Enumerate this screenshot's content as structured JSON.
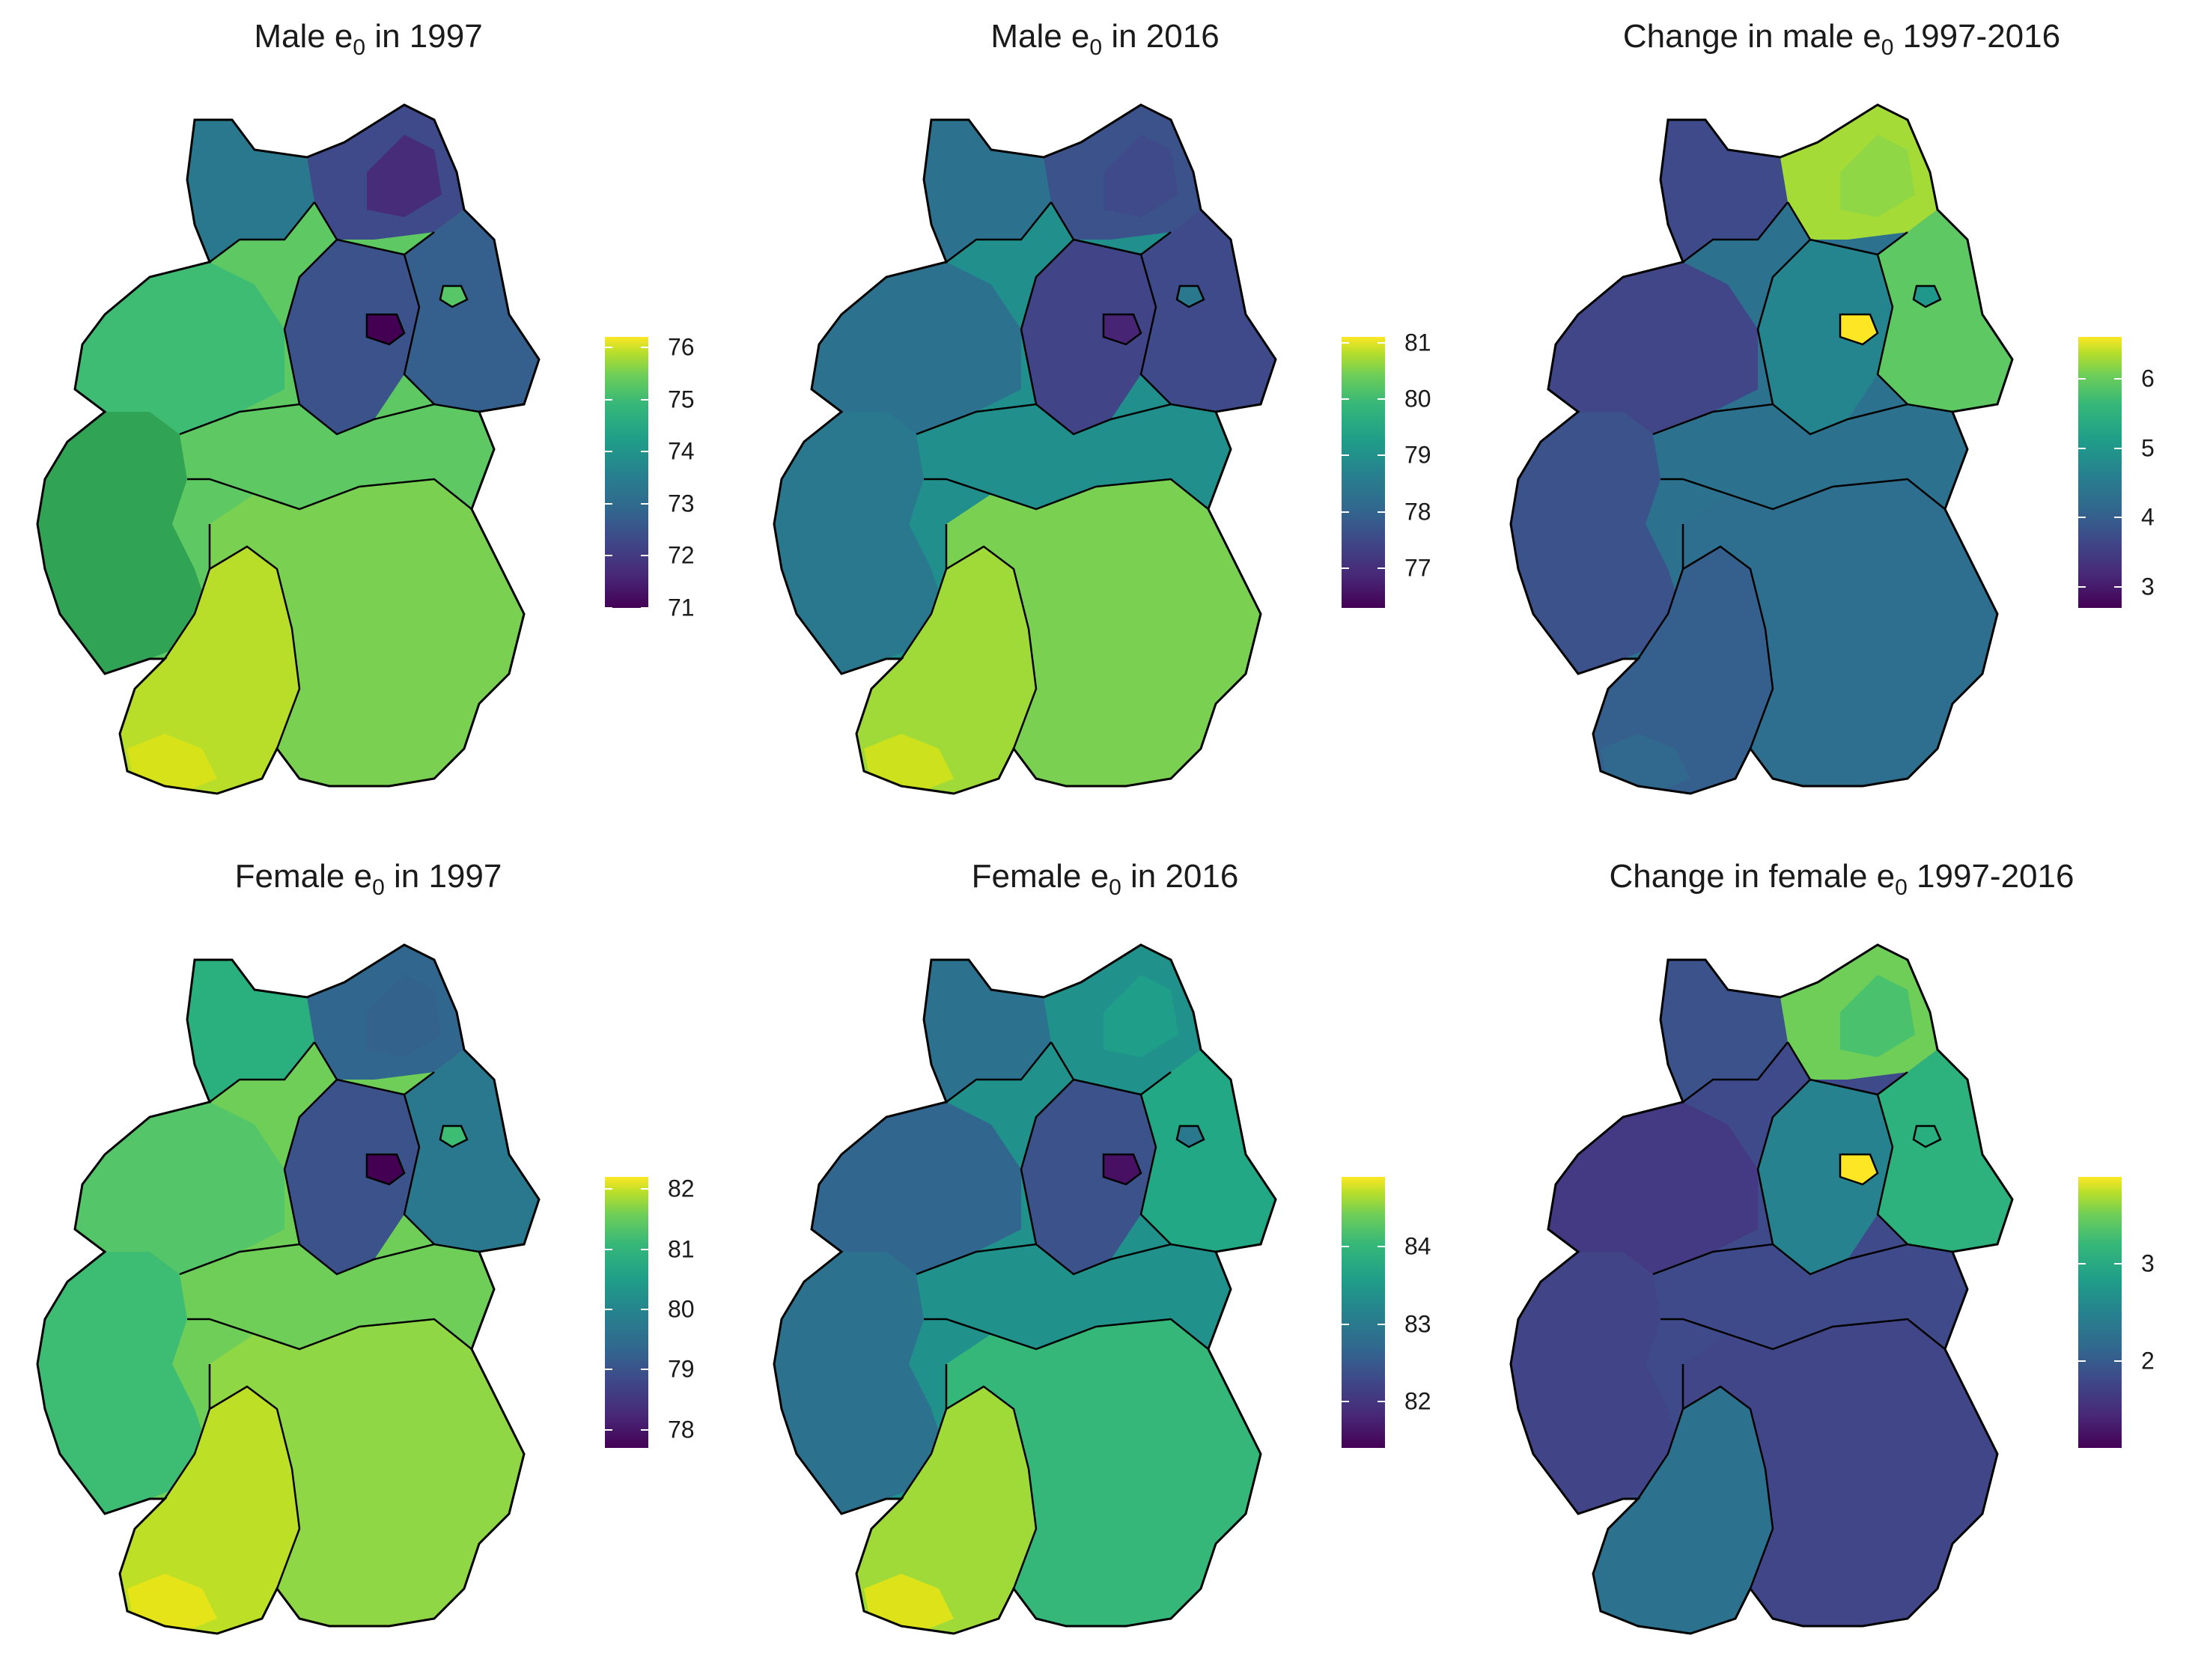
{
  "panels": [
    {
      "id": "male-1997",
      "title_pre": "Male e",
      "title_sub": "0",
      "title_post": " in 1997",
      "palette": {
        "north": "#2a788e",
        "ne_coast": "#3e4a89",
        "ne_dark": "#472c7a",
        "east": "#35608d",
        "center_east": "#3b528b",
        "west": "#31a354",
        "nw": "#3fbc73",
        "center": "#5ec962",
        "south_west": "#b8de29",
        "south_east": "#7ad151",
        "sw_bright": "#d8e219",
        "berlin": "#56c667",
        "hotspot": "#440154"
      },
      "legend": {
        "min": 71,
        "max": 76.2,
        "ticks": [
          "71",
          "72",
          "73",
          "74",
          "75",
          "76"
        ],
        "tick_values": [
          71,
          72,
          73,
          74,
          75,
          76
        ]
      }
    },
    {
      "id": "male-2016",
      "title_pre": "Male e",
      "title_sub": "0",
      "title_post": " in 2016",
      "palette": {
        "north": "#2c718e",
        "ne_coast": "#3b528b",
        "ne_dark": "#3e4a89",
        "east": "#3e4a89",
        "center_east": "#414487",
        "west": "#2a788e",
        "nw": "#2c728e",
        "center": "#21908d",
        "south_west": "#a0da39",
        "south_east": "#7ad151",
        "sw_bright": "#cde11d",
        "berlin": "#2a788e",
        "hotspot": "#482475"
      },
      "legend": {
        "min": 76.3,
        "max": 81.1,
        "ticks": [
          "77",
          "78",
          "79",
          "80",
          "81"
        ],
        "tick_values": [
          77,
          78,
          79,
          80,
          81
        ]
      }
    },
    {
      "id": "male-change",
      "title_pre": "Change in male e",
      "title_sub": "0",
      "title_post": " 1997-2016",
      "palette": {
        "north": "#3e4a89",
        "ne_coast": "#a5db36",
        "ne_dark": "#8fd744",
        "east": "#5ec962",
        "center_east": "#25858e",
        "west": "#3b528b",
        "nw": "#404688",
        "center": "#2c728e",
        "south_west": "#355f8d",
        "south_east": "#2e6e8e",
        "sw_bright": "#31688e",
        "berlin": "#1f988b",
        "hotspot": "#fde725"
      },
      "legend": {
        "min": 2.7,
        "max": 6.6,
        "ticks": [
          "3",
          "4",
          "5",
          "6"
        ],
        "tick_values": [
          3,
          4,
          5,
          6
        ]
      }
    },
    {
      "id": "female-1997",
      "title_pre": "Female e",
      "title_sub": "0",
      "title_post": " in 1997",
      "palette": {
        "north": "#2ab07f",
        "ne_coast": "#31668e",
        "ne_dark": "#33638d",
        "east": "#2a788e",
        "center_east": "#3b528b",
        "west": "#3dbc74",
        "nw": "#54c568",
        "center": "#6ece58",
        "south_west": "#bddf26",
        "south_east": "#8fd744",
        "sw_bright": "#e5e419",
        "berlin": "#3dbc74",
        "hotspot": "#440154"
      },
      "legend": {
        "min": 77.7,
        "max": 82.2,
        "ticks": [
          "78",
          "79",
          "80",
          "81",
          "82"
        ],
        "tick_values": [
          78,
          79,
          80,
          81,
          82
        ]
      }
    },
    {
      "id": "female-2016",
      "title_pre": "Female e",
      "title_sub": "0",
      "title_post": " in 2016",
      "palette": {
        "north": "#2c718e",
        "ne_coast": "#21918c",
        "ne_dark": "#1f9e89",
        "east": "#22a884",
        "center_east": "#3b528b",
        "west": "#2c728e",
        "nw": "#31668e",
        "center": "#21918c",
        "south_west": "#a0da39",
        "south_east": "#35b779",
        "sw_bright": "#dde318",
        "berlin": "#2a788e",
        "hotspot": "#471063"
      },
      "legend": {
        "min": 81.4,
        "max": 84.9,
        "ticks": [
          "82",
          "83",
          "84"
        ],
        "tick_values": [
          82,
          83,
          84
        ]
      }
    },
    {
      "id": "female-change",
      "title_pre": "Change in female e",
      "title_sub": "0",
      "title_post": " 1997-2016",
      "palette": {
        "north": "#3b528b",
        "ne_coast": "#6ece58",
        "ne_dark": "#4ac16d",
        "east": "#2db27d",
        "center_east": "#26828e",
        "west": "#414487",
        "nw": "#443983",
        "center": "#3e4a89",
        "south_west": "#2c728e",
        "south_east": "#404688",
        "sw_bright": "#2c728e",
        "berlin": "#29af7f",
        "hotspot": "#fde725"
      },
      "legend": {
        "min": 1.1,
        "max": 3.9,
        "ticks": [
          "2",
          "3"
        ],
        "tick_values": [
          2,
          3
        ]
      }
    }
  ]
}
